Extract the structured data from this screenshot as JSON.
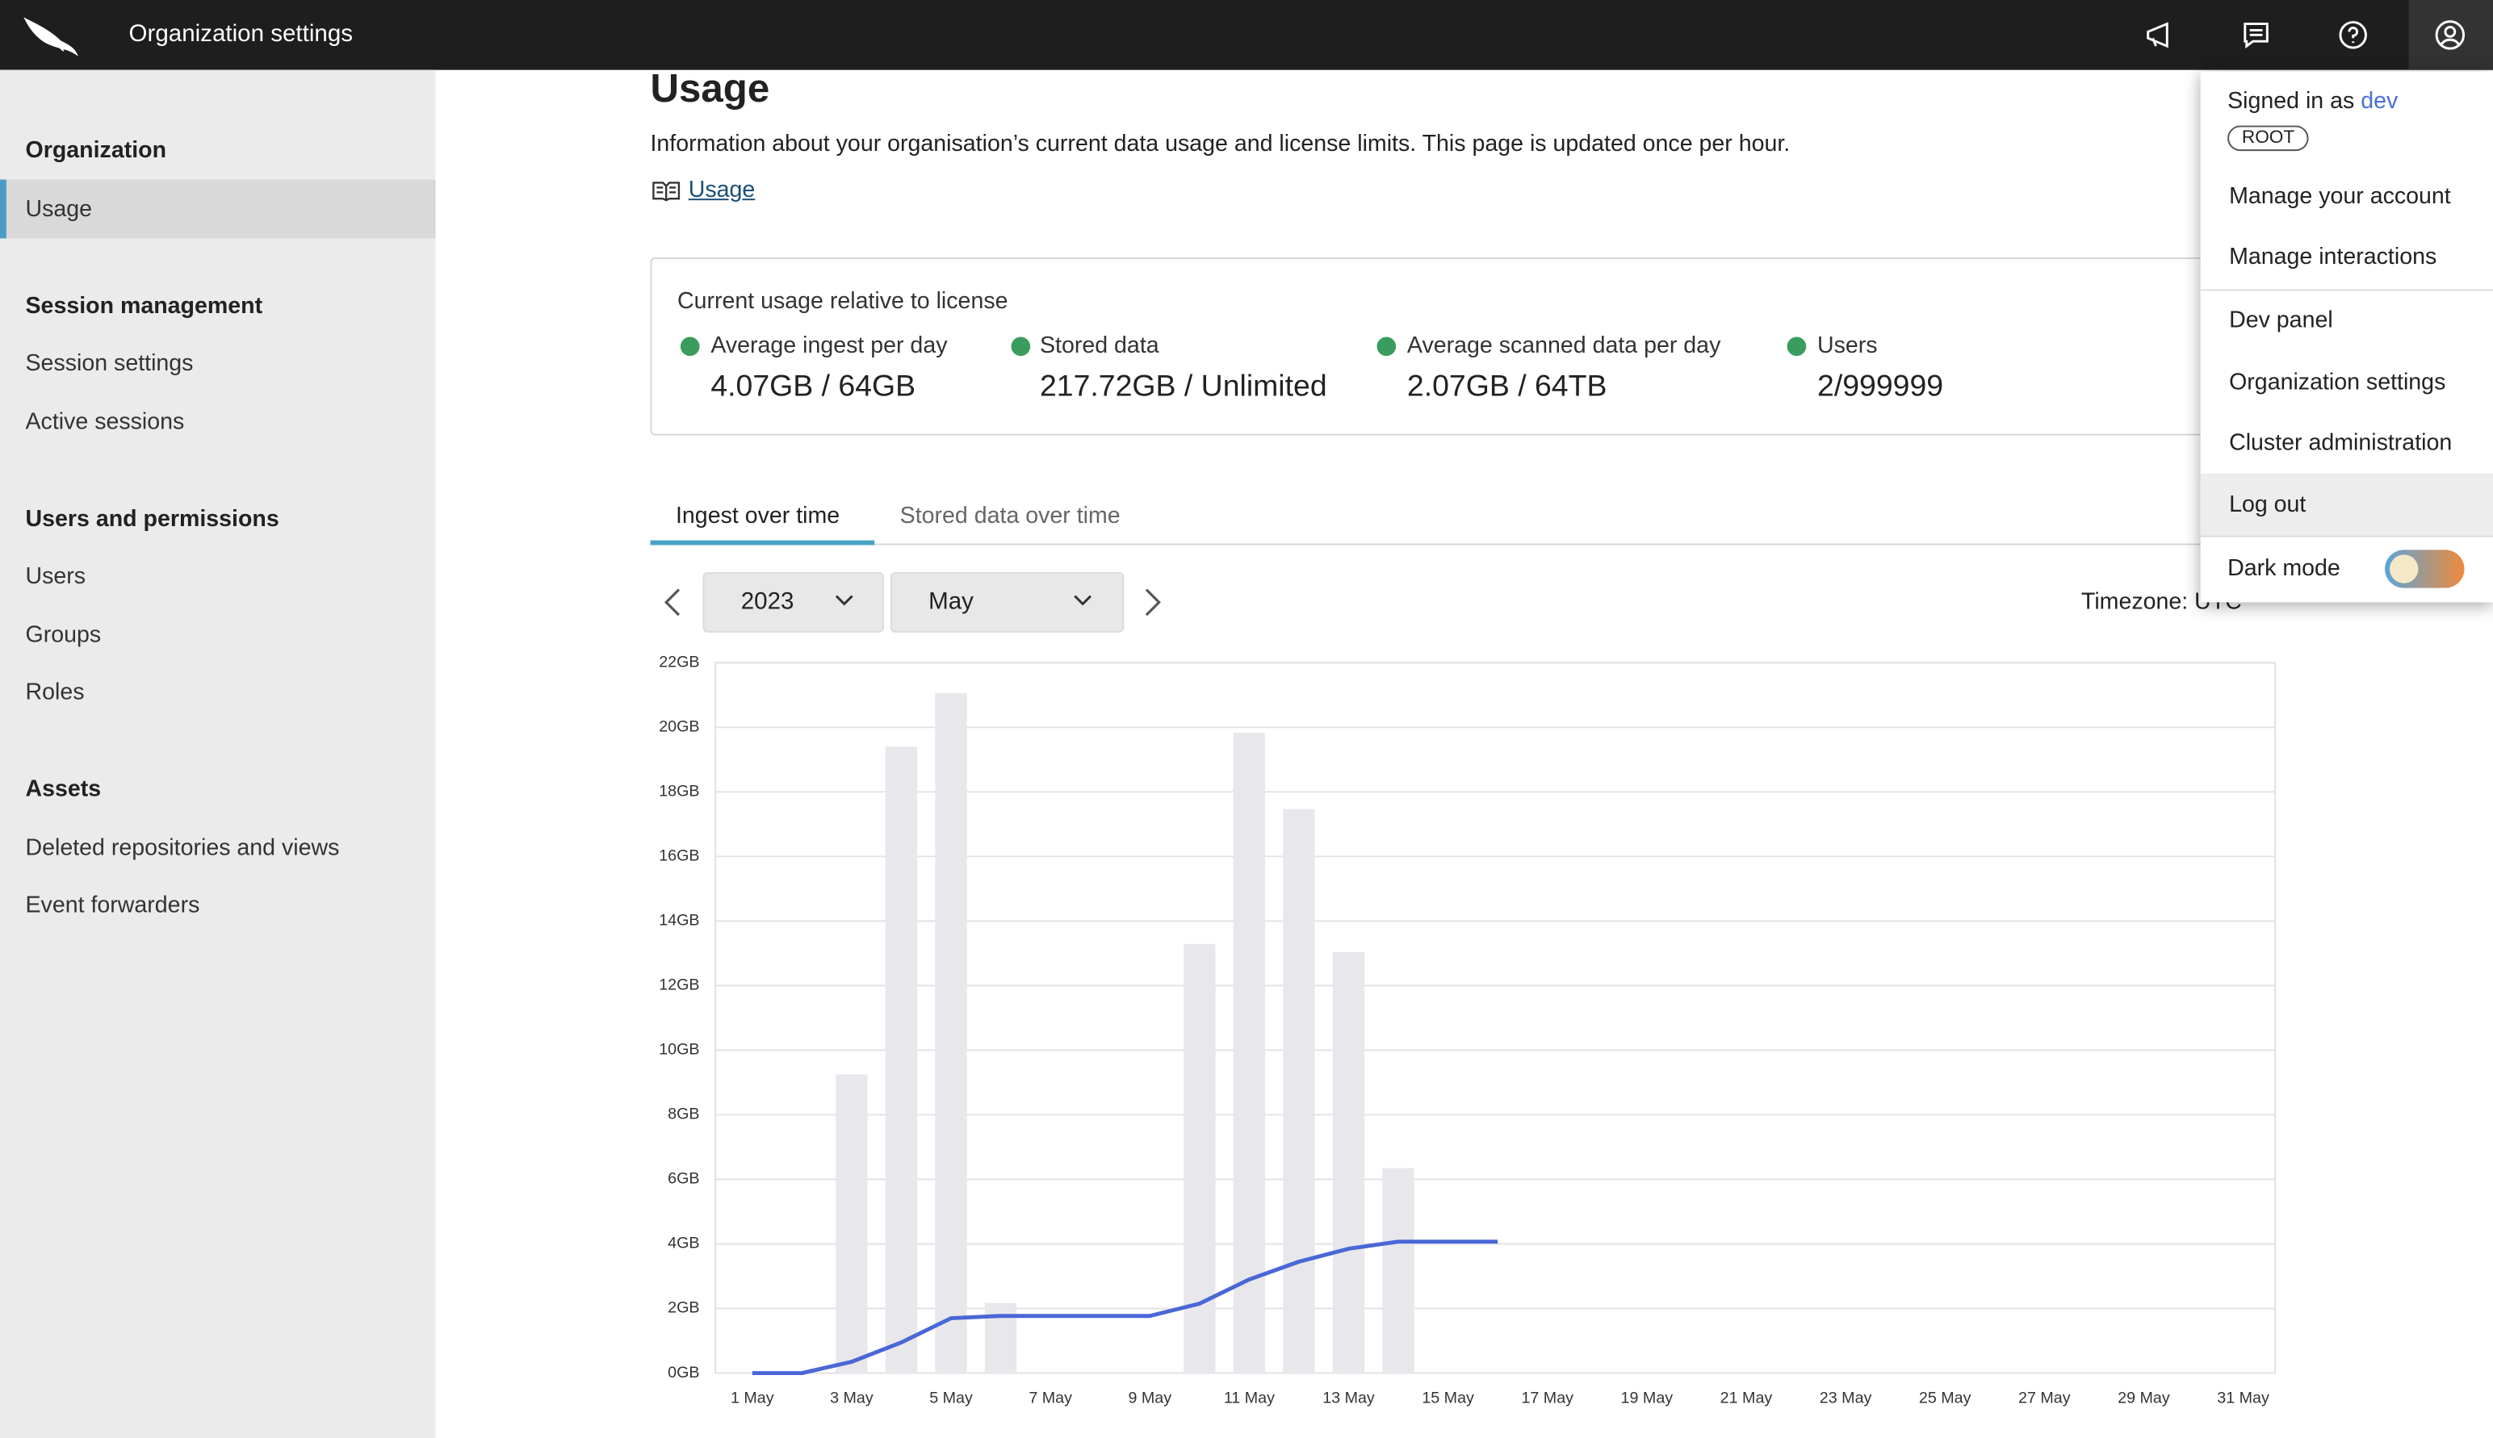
{
  "header": {
    "title": "Organization settings"
  },
  "sidebar": {
    "sections": [
      {
        "title": "Organization",
        "items": [
          "Usage"
        ]
      },
      {
        "title": "Session management",
        "items": [
          "Session settings",
          "Active sessions"
        ]
      },
      {
        "title": "Users and permissions",
        "items": [
          "Users",
          "Groups",
          "Roles"
        ]
      },
      {
        "title": "Assets",
        "items": [
          "Deleted repositories and views",
          "Event forwarders"
        ]
      }
    ]
  },
  "main": {
    "title": "Usage",
    "description": "Information about your organisation’s current data usage and license limits. This page is updated once per hour.",
    "doc_link": "Usage"
  },
  "summary": {
    "title": "Current usage relative to license",
    "items": [
      {
        "label": "Average ingest per day",
        "value": "4.07GB / 64GB"
      },
      {
        "label": "Stored data",
        "value": "217.72GB / Unlimited"
      },
      {
        "label": "Average scanned data per day",
        "value": "2.07GB / 64TB"
      },
      {
        "label": "Users",
        "value": "2/999999"
      }
    ]
  },
  "tabs": [
    "Ingest over time",
    "Stored data over time"
  ],
  "controls": {
    "year": "2023",
    "month": "May",
    "timezone": "Timezone: UTC"
  },
  "menu": {
    "signed_in_as": "Signed in as",
    "user": "dev",
    "role": "ROOT",
    "items": [
      "Manage your account",
      "Manage interactions",
      "Dev panel",
      "Organization settings",
      "Cluster administration",
      "Log out"
    ],
    "dark_mode": "Dark mode"
  },
  "chart_data": {
    "type": "bar",
    "categories": [
      "1 May",
      null,
      "3 May",
      null,
      "5 May",
      null,
      "7 May",
      null,
      "9 May",
      null,
      "11 May",
      null,
      "13 May",
      null,
      "15 May",
      null,
      "17 May",
      null,
      "19 May",
      null,
      "21 May",
      null,
      "23 May",
      null,
      "25 May",
      null,
      "27 May",
      null,
      "29 May",
      null,
      "31 May"
    ],
    "series": [
      {
        "type": "bar",
        "color": "#e8e8ec",
        "values": [
          0,
          0,
          9.25,
          19.4,
          21.06,
          2.17,
          0,
          0,
          0,
          13.29,
          19.83,
          17.47,
          13.04,
          6.35,
          0,
          0,
          null,
          null,
          null,
          null,
          null,
          null,
          null,
          null,
          null,
          null,
          null,
          null,
          null,
          null,
          null
        ]
      },
      {
        "type": "line",
        "color": "#4a67d6",
        "values": [
          0,
          0,
          0.35,
          0.95,
          1.7,
          1.77,
          1.77,
          1.77,
          1.77,
          2.15,
          2.9,
          3.45,
          3.85,
          4.07,
          4.07,
          4.07,
          null,
          null,
          null,
          null,
          null,
          null,
          null,
          null,
          null,
          null,
          null,
          null,
          null,
          null,
          null
        ]
      }
    ],
    "ylim": [
      0,
      22
    ],
    "yticks": [
      {
        "value": 0,
        "label": "0GB"
      },
      {
        "value": 2,
        "label": "2GB"
      },
      {
        "value": 4,
        "label": "4GB"
      },
      {
        "value": 6,
        "label": "6GB"
      },
      {
        "value": 8,
        "label": "8GB"
      },
      {
        "value": 10,
        "label": "10GB"
      },
      {
        "value": 12,
        "label": "12GB"
      },
      {
        "value": 14,
        "label": "14GB"
      },
      {
        "value": 16,
        "label": "16GB"
      },
      {
        "value": 18,
        "label": "18GB"
      },
      {
        "value": 20,
        "label": "20GB"
      },
      {
        "value": 22,
        "label": "22GB"
      }
    ],
    "grid": true
  }
}
